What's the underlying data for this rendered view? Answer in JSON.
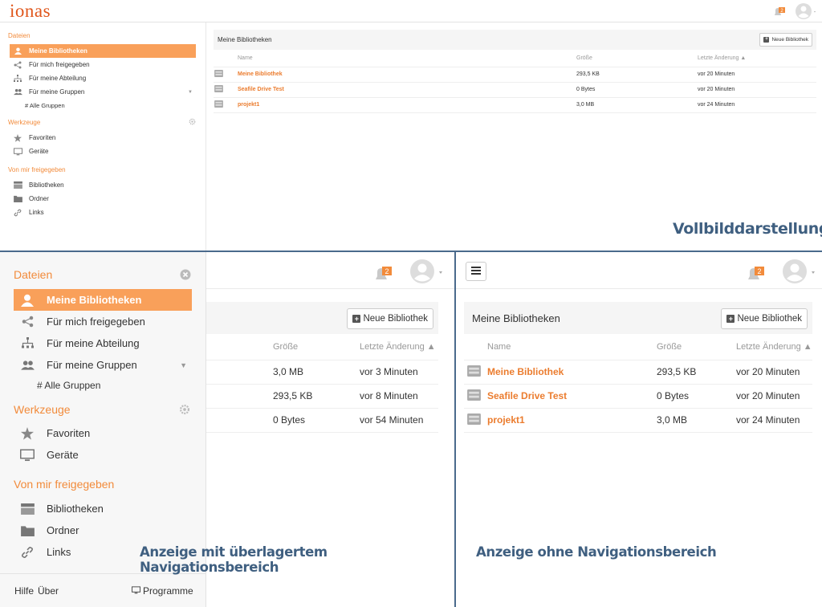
{
  "logo": "ionas",
  "badge_count": "2",
  "full": {
    "sidebar": {
      "dateien": "Dateien",
      "meine_bibliotheken": "Meine Bibliotheken",
      "fuer_mich": "Für mich freigegeben",
      "abteilung": "Für meine Abteilung",
      "gruppen": "Für meine Gruppen",
      "alle_gruppen": "# Alle Gruppen",
      "werkzeuge": "Werkzeuge",
      "favoriten": "Favoriten",
      "geraete": "Geräte",
      "von_mir": "Von mir freigegeben",
      "bibliotheken": "Bibliotheken",
      "ordner": "Ordner",
      "links": "Links"
    },
    "panel_title": "Meine Bibliotheken",
    "new_library": "Neue Bibliothek",
    "columns": {
      "name": "Name",
      "size": "Größe",
      "modified": "Letzte Änderung ▲"
    },
    "rows": [
      {
        "name": "Meine Bibliothek",
        "size": "293,5 KB",
        "modified": "vor 20 Minuten"
      },
      {
        "name": "Seafile Drive Test",
        "size": "0 Bytes",
        "modified": "vor 20 Minuten"
      },
      {
        "name": "projekt1",
        "size": "3,0 MB",
        "modified": "vor 24 Minuten"
      }
    ],
    "caption": "Vollbilddarstellung"
  },
  "overlay": {
    "sidebar": {
      "dateien": "Dateien",
      "meine_bibliotheken": "Meine Bibliotheken",
      "fuer_mich": "Für mich freigegeben",
      "abteilung": "Für meine Abteilung",
      "gruppen": "Für meine Gruppen",
      "alle_gruppen": "# Alle Gruppen",
      "werkzeuge": "Werkzeuge",
      "favoriten": "Favoriten",
      "geraete": "Geräte",
      "von_mir": "Von mir freigegeben",
      "bibliotheken": "Bibliotheken",
      "ordner": "Ordner",
      "links": "Links"
    },
    "footer": {
      "hilfe": "Hilfe",
      "ueber": "Über",
      "programme": "Programme"
    },
    "new_library": "Neue Bibliothek",
    "columns": {
      "size": "Größe",
      "modified": "Letzte Änderung ▲"
    },
    "rows": [
      {
        "size": "3,0 MB",
        "modified": "vor 3 Minuten"
      },
      {
        "size": "293,5 KB",
        "modified": "vor 8 Minuten"
      },
      {
        "size": "0 Bytes",
        "modified": "vor 54 Minuten"
      }
    ],
    "caption": "Anzeige mit überlagertem Navigationsbereich"
  },
  "nonav": {
    "panel_title": "Meine Bibliotheken",
    "new_library": "Neue Bibliothek",
    "columns": {
      "name": "Name",
      "size": "Größe",
      "modified": "Letzte Änderung ▲"
    },
    "rows": [
      {
        "name": "Meine Bibliothek",
        "size": "293,5 KB",
        "modified": "vor 20 Minuten"
      },
      {
        "name": "Seafile Drive Test",
        "size": "0 Bytes",
        "modified": "vor 20 Minuten"
      },
      {
        "name": "projekt1",
        "size": "3,0 MB",
        "modified": "vor 24 Minuten"
      }
    ],
    "caption": "Anzeige ohne Navigationsbereich"
  },
  "colors": {
    "accent": "#f28b3b",
    "active_bg": "#f9a05a",
    "link": "#eb7c2e",
    "caption": "#3f5f80",
    "divider": "#4a6a8c"
  }
}
